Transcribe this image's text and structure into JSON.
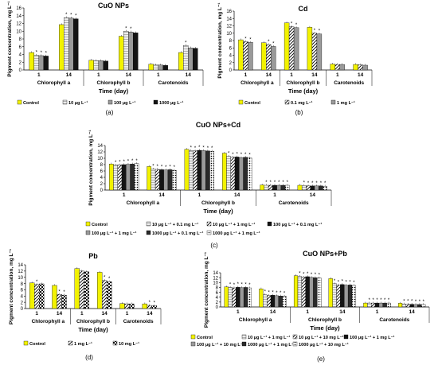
{
  "patterns": {
    "yellow": "#f2f200",
    "grey": "#9a9a9a",
    "black": "#141414",
    "hatch": "#ffffff",
    "light": "#d6d6d6",
    "dots": "#ffffff",
    "checker": "#ffffff",
    "dark": "#2a2a2a"
  },
  "chart_data": [
    {
      "id": "a",
      "type": "bar",
      "title": "CuO NPs",
      "ylabel": "Pigment concentration, mg L⁻¹",
      "xlabel": "Time (day)",
      "panel_label": "(a)",
      "ylim": [
        0,
        16
      ],
      "yticks": [
        "0",
        "2",
        "4",
        "6",
        "8",
        "10",
        "12",
        "14",
        "16"
      ],
      "groups": [
        {
          "label": "Chlorophyll a",
          "times": [
            "1",
            "14"
          ]
        },
        {
          "label": "Chlorophyll b",
          "times": [
            "1",
            "14"
          ]
        },
        {
          "label": "Carotenoids",
          "times": [
            "1",
            "14"
          ]
        }
      ],
      "series": [
        {
          "name": "Control",
          "pattern": "yellow",
          "values": [
            4.5,
            11.7,
            2.5,
            8.7,
            1.5,
            4.5
          ],
          "marks": [
            "",
            "",
            "",
            "",
            "",
            ""
          ]
        },
        {
          "name": "10 µg L⁻¹",
          "pattern": "light",
          "values": [
            3.8,
            13.5,
            2.4,
            10.0,
            1.3,
            6.3
          ],
          "marks": [
            "*",
            "*",
            "",
            "*",
            "",
            "*"
          ]
        },
        {
          "name": "100 µg L⁻¹",
          "pattern": "grey",
          "values": [
            3.7,
            13.4,
            2.4,
            9.8,
            1.3,
            5.7
          ],
          "marks": [
            "*",
            "*",
            "",
            "*",
            "",
            ""
          ]
        },
        {
          "name": "1000 µg L⁻¹",
          "pattern": "black",
          "values": [
            3.6,
            13.2,
            2.3,
            9.6,
            1.2,
            5.6
          ],
          "marks": [
            "*",
            "*",
            "",
            "",
            "",
            ""
          ]
        }
      ]
    },
    {
      "id": "b",
      "type": "bar",
      "title": "Cd",
      "ylabel": "Pigment concentration, mg L⁻¹",
      "xlabel": "Time (day)",
      "panel_label": "(b)",
      "ylim": [
        0,
        16
      ],
      "yticks": [
        "0",
        "2",
        "4",
        "6",
        "8",
        "10",
        "12",
        "14",
        "16"
      ],
      "groups": [
        {
          "label": "Chlorophyll a",
          "times": [
            "1",
            "14"
          ]
        },
        {
          "label": "Chlorophyll b",
          "times": [
            "1",
            "14"
          ]
        },
        {
          "label": "Carotenoids",
          "times": [
            "1",
            "14"
          ]
        }
      ],
      "series": [
        {
          "name": "Control",
          "pattern": "yellow",
          "values": [
            8.2,
            7.4,
            12.8,
            11.6,
            1.6,
            1.5
          ],
          "marks": [
            "",
            "",
            "",
            "",
            "",
            ""
          ]
        },
        {
          "name": "0.1 mg L⁻¹",
          "pattern": "hatch",
          "values": [
            7.7,
            6.9,
            11.8,
            10.0,
            1.5,
            1.4
          ],
          "marks": [
            "*",
            "*",
            "*",
            "*",
            "",
            ""
          ]
        },
        {
          "name": "1 mg L⁻¹",
          "pattern": "grey",
          "values": [
            7.5,
            6.4,
            11.5,
            9.8,
            1.5,
            1.3
          ],
          "marks": [
            "*",
            "*",
            "*",
            "*",
            "",
            ""
          ]
        }
      ]
    },
    {
      "id": "c",
      "type": "bar",
      "title": "CuO NPs+Cd",
      "ylabel": "Pigment concentration, mg L⁻¹",
      "xlabel": "Time (day)",
      "panel_label": "(c)",
      "ylim": [
        0,
        14
      ],
      "yticks": [
        "0",
        "2",
        "4",
        "6",
        "8",
        "10",
        "12",
        "14"
      ],
      "groups": [
        {
          "label": "Chlorophyll a",
          "times": [
            "1",
            "14"
          ]
        },
        {
          "label": "Chlorophyll b",
          "times": [
            "1",
            "14"
          ]
        },
        {
          "label": "Carotenoids",
          "times": [
            "1",
            "14"
          ]
        }
      ],
      "series": [
        {
          "name": "Control",
          "pattern": "yellow",
          "values": [
            8.2,
            7.4,
            12.8,
            11.6,
            1.6,
            1.5
          ],
          "marks": [
            "",
            "",
            "",
            "",
            "",
            ""
          ]
        },
        {
          "name": "10 µg L⁻¹ + 0.1 mg L⁻¹",
          "pattern": "light",
          "values": [
            7.8,
            6.6,
            12.4,
            10.6,
            1.5,
            1.4
          ],
          "marks": [
            "*",
            "*",
            "*",
            "*",
            "*",
            "*"
          ]
        },
        {
          "name": "10 µg L⁻¹ + 1 mg L⁻¹",
          "pattern": "hatch",
          "values": [
            7.9,
            6.5,
            12.3,
            10.3,
            1.5,
            1.3
          ],
          "marks": [
            "*",
            "*",
            "*",
            "*",
            "*",
            "*"
          ]
        },
        {
          "name": "100 µg L⁻¹ + 0.1 mg L⁻¹",
          "pattern": "black",
          "values": [
            8.0,
            6.4,
            12.5,
            10.4,
            1.5,
            1.3
          ],
          "marks": [
            "*",
            "*",
            "*",
            "*",
            "*",
            "*"
          ]
        },
        {
          "name": "100 µg L⁻¹ + 1 mg L⁻¹",
          "pattern": "grey",
          "values": [
            8.1,
            6.3,
            12.4,
            10.2,
            1.5,
            1.3
          ],
          "marks": [
            "*",
            "*",
            "*",
            "*",
            "*",
            "*"
          ]
        },
        {
          "name": "1000 µg L⁻¹ + 0.1 mg L⁻¹",
          "pattern": "dark",
          "values": [
            8.2,
            6.4,
            12.3,
            10.3,
            1.5,
            1.3
          ],
          "marks": [
            "*",
            "*",
            "*",
            "*",
            "*",
            "*"
          ]
        },
        {
          "name": "1000 µg L⁻¹ + 1 mg L⁻¹",
          "pattern": "dots",
          "values": [
            8.3,
            6.2,
            12.2,
            10.1,
            1.5,
            1.2
          ],
          "marks": [
            "*",
            "*",
            "*",
            "*",
            "*",
            "*"
          ]
        }
      ]
    },
    {
      "id": "d",
      "type": "bar",
      "title": "Pb",
      "ylabel": "Pigment concentration, mg L⁻¹",
      "xlabel": "Time (day)",
      "panel_label": "(d)",
      "ylim": [
        0,
        14
      ],
      "yticks": [
        "0",
        "2",
        "4",
        "6",
        "8",
        "10",
        "12",
        "14"
      ],
      "groups": [
        {
          "label": "Chlorophyll a",
          "times": [
            "1",
            "14"
          ]
        },
        {
          "label": "Chlorophyll b",
          "times": [
            "1",
            "14"
          ]
        },
        {
          "label": "Carotenoids",
          "times": [
            "1",
            "14"
          ]
        }
      ],
      "series": [
        {
          "name": "Control",
          "pattern": "yellow",
          "values": [
            8.2,
            7.4,
            12.8,
            11.6,
            1.6,
            1.5
          ],
          "marks": [
            "",
            "",
            "",
            "",
            "",
            ""
          ]
        },
        {
          "name": "1 mg L⁻¹",
          "pattern": "hatch",
          "values": [
            7.7,
            4.5,
            12.0,
            9.0,
            1.5,
            1.0
          ],
          "marks": [
            "*",
            "*",
            "",
            "*",
            "",
            "*"
          ]
        },
        {
          "name": "10 mg L⁻¹",
          "pattern": "checker",
          "values": [
            7.9,
            4.3,
            11.8,
            8.6,
            1.5,
            0.9
          ],
          "marks": [
            "",
            "*",
            "",
            "*",
            "",
            "*"
          ]
        }
      ]
    },
    {
      "id": "e",
      "type": "bar",
      "title": "CuO NPs+Pb",
      "ylabel": "Pigment concentration, mg L⁻¹",
      "xlabel": "Time (day)",
      "panel_label": "(e)",
      "ylim": [
        0,
        14
      ],
      "yticks": [
        "0",
        "2",
        "4",
        "6",
        "8",
        "10",
        "12",
        "14"
      ],
      "groups": [
        {
          "label": "Chlorophyll a",
          "times": [
            "1",
            "14"
          ]
        },
        {
          "label": "Chlorophyll b",
          "times": [
            "1",
            "14"
          ]
        },
        {
          "label": "Carotenoids",
          "times": [
            "1",
            "14"
          ]
        }
      ],
      "series": [
        {
          "name": "Control",
          "pattern": "yellow",
          "values": [
            8.2,
            7.4,
            12.8,
            11.6,
            1.6,
            1.5
          ],
          "marks": [
            "",
            "",
            "",
            "",
            "",
            ""
          ]
        },
        {
          "name": "10 µg L⁻¹ + 1 mg L⁻¹",
          "pattern": "light",
          "values": [
            8.0,
            5.0,
            12.5,
            9.5,
            1.6,
            1.2
          ],
          "marks": [
            "*",
            "*",
            "*",
            "*",
            "*",
            "*"
          ]
        },
        {
          "name": "10 µg L⁻¹ + 10 mg L⁻¹",
          "pattern": "hatch",
          "values": [
            7.8,
            4.7,
            12.2,
            9.0,
            1.6,
            1.1
          ],
          "marks": [
            "*",
            "*",
            "*",
            "*",
            "*",
            "*"
          ]
        },
        {
          "name": "100 µg L⁻¹ + 1 mg L⁻¹",
          "pattern": "black",
          "values": [
            8.1,
            4.8,
            12.4,
            9.2,
            1.6,
            1.1
          ],
          "marks": [
            "*",
            "*",
            "*",
            "*",
            "*",
            "*"
          ]
        },
        {
          "name": "100 µg L⁻¹ + 10 mg L⁻¹",
          "pattern": "grey",
          "values": [
            7.9,
            4.6,
            12.1,
            8.9,
            1.6,
            1.0
          ],
          "marks": [
            "*",
            "*",
            "*",
            "*",
            "*",
            "*"
          ]
        },
        {
          "name": "1000 µg L⁻¹ + 1 mg L⁻¹",
          "pattern": "dark",
          "values": [
            8.0,
            4.5,
            12.0,
            9.0,
            1.6,
            1.0
          ],
          "marks": [
            "*",
            "*",
            "*",
            "*",
            "*",
            "*"
          ]
        },
        {
          "name": "1000 µg L⁻¹ + 10 mg L⁻¹",
          "pattern": "dots",
          "values": [
            7.8,
            4.4,
            11.9,
            8.8,
            1.6,
            1.0
          ],
          "marks": [
            "*",
            "*",
            "*",
            "*",
            "*",
            "*"
          ]
        }
      ]
    }
  ]
}
